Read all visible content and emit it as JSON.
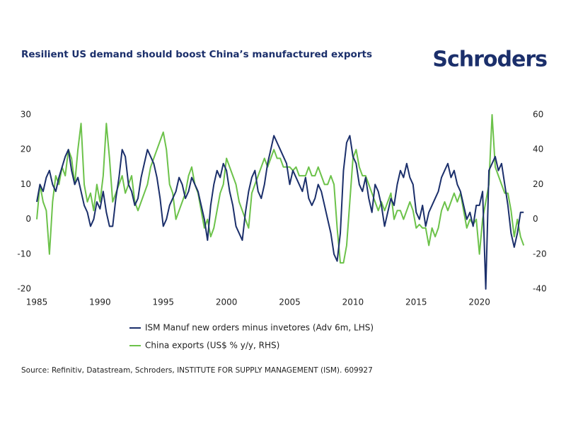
{
  "brand": "Schroders",
  "chart_data": {
    "type": "line",
    "title": "Resilient US demand should boost China’s manufactured exports",
    "source": "Source: Refinitiv, Datastream, Schroders, INSTITUTE FOR SUPPLY MANAGEMENT (ISM). 609927",
    "xlim": [
      1985,
      2023.6
    ],
    "xticks": [
      1985,
      1990,
      1995,
      2000,
      2005,
      2010,
      2015,
      2020
    ],
    "ylim": [
      -20,
      30
    ],
    "yticks": [
      -20,
      -10,
      0,
      10,
      20,
      30
    ],
    "y2lim": [
      -40,
      60
    ],
    "y2ticks": [
      -40,
      -20,
      0,
      20,
      40,
      60
    ],
    "x": [
      1985,
      1985.25,
      1985.5,
      1985.75,
      1986,
      1986.25,
      1986.5,
      1986.75,
      1987,
      1987.25,
      1987.5,
      1987.75,
      1988,
      1988.25,
      1988.5,
      1988.75,
      1989,
      1989.25,
      1989.5,
      1989.75,
      1990,
      1990.25,
      1990.5,
      1990.75,
      1991,
      1991.25,
      1991.5,
      1991.75,
      1992,
      1992.25,
      1992.5,
      1992.75,
      1993,
      1993.25,
      1993.5,
      1993.75,
      1994,
      1994.25,
      1994.5,
      1994.75,
      1995,
      1995.25,
      1995.5,
      1995.75,
      1996,
      1996.25,
      1996.5,
      1996.75,
      1997,
      1997.25,
      1997.5,
      1997.75,
      1998,
      1998.25,
      1998.5,
      1998.75,
      1999,
      1999.25,
      1999.5,
      1999.75,
      2000,
      2000.25,
      2000.5,
      2000.75,
      2001,
      2001.25,
      2001.5,
      2001.75,
      2002,
      2002.25,
      2002.5,
      2002.75,
      2003,
      2003.25,
      2003.5,
      2003.75,
      2004,
      2004.25,
      2004.5,
      2004.75,
      2005,
      2005.25,
      2005.5,
      2005.75,
      2006,
      2006.25,
      2006.5,
      2006.75,
      2007,
      2007.25,
      2007.5,
      2007.75,
      2008,
      2008.25,
      2008.5,
      2008.75,
      2009,
      2009.25,
      2009.5,
      2009.75,
      2010,
      2010.25,
      2010.5,
      2010.75,
      2011,
      2011.25,
      2011.5,
      2011.75,
      2012,
      2012.25,
      2012.5,
      2012.75,
      2013,
      2013.25,
      2013.5,
      2013.75,
      2014,
      2014.25,
      2014.5,
      2014.75,
      2015,
      2015.25,
      2015.5,
      2015.75,
      2016,
      2016.25,
      2016.5,
      2016.75,
      2017,
      2017.25,
      2017.5,
      2017.75,
      2018,
      2018.25,
      2018.5,
      2018.75,
      2019,
      2019.25,
      2019.5,
      2019.75,
      2020,
      2020.25,
      2020.5,
      2020.75,
      2021,
      2021.25,
      2021.5,
      2021.75,
      2022,
      2022.25,
      2022.5,
      2022.75,
      2023,
      2023.25,
      2023.5
    ],
    "series": [
      {
        "name": "ISM Manuf new orders minus invetores (Adv 6m, LHS)",
        "color": "#1b2f6b",
        "values": [
          5,
          10,
          8,
          12,
          14,
          10,
          8,
          12,
          15,
          18,
          20,
          14,
          10,
          12,
          8,
          4,
          2,
          -2,
          0,
          5,
          3,
          8,
          2,
          -2,
          -2,
          6,
          12,
          20,
          18,
          10,
          8,
          4,
          6,
          12,
          16,
          20,
          18,
          16,
          12,
          6,
          -2,
          0,
          4,
          6,
          8,
          12,
          10,
          6,
          8,
          12,
          10,
          8,
          4,
          0,
          -6,
          4,
          10,
          14,
          12,
          16,
          14,
          8,
          4,
          -2,
          -4,
          -6,
          2,
          8,
          12,
          14,
          8,
          6,
          10,
          16,
          20,
          24,
          22,
          20,
          18,
          16,
          10,
          14,
          12,
          10,
          8,
          12,
          6,
          4,
          6,
          10,
          8,
          4,
          0,
          -4,
          -10,
          -12,
          -4,
          14,
          22,
          24,
          18,
          16,
          10,
          8,
          12,
          6,
          2,
          10,
          8,
          4,
          -2,
          2,
          6,
          4,
          10,
          14,
          12,
          16,
          12,
          10,
          2,
          0,
          4,
          -2,
          2,
          4,
          6,
          8,
          12,
          14,
          16,
          12,
          14,
          10,
          8,
          4,
          0,
          2,
          -2,
          4,
          4,
          8,
          -20,
          14,
          16,
          18,
          14,
          16,
          10,
          4,
          -4,
          -8,
          -4,
          2,
          2
        ]
      },
      {
        "name": "China exports (US$ % y/y, RHS)",
        "color": "#6cc24a",
        "axis": "y2",
        "values": [
          0,
          20,
          10,
          5,
          -20,
          10,
          25,
          20,
          30,
          25,
          40,
          35,
          20,
          40,
          55,
          20,
          10,
          15,
          5,
          20,
          10,
          25,
          55,
          35,
          10,
          15,
          20,
          25,
          15,
          20,
          25,
          10,
          5,
          10,
          15,
          20,
          30,
          35,
          40,
          45,
          50,
          40,
          20,
          15,
          0,
          5,
          10,
          15,
          25,
          30,
          20,
          15,
          5,
          -5,
          0,
          -10,
          -5,
          5,
          15,
          20,
          35,
          30,
          25,
          20,
          10,
          5,
          0,
          -5,
          15,
          20,
          25,
          30,
          35,
          30,
          35,
          40,
          35,
          35,
          30,
          30,
          30,
          28,
          30,
          25,
          25,
          25,
          30,
          25,
          25,
          30,
          25,
          20,
          20,
          25,
          20,
          -5,
          -25,
          -25,
          -15,
          10,
          35,
          40,
          30,
          25,
          25,
          20,
          15,
          10,
          5,
          10,
          5,
          10,
          15,
          0,
          5,
          5,
          0,
          5,
          10,
          5,
          -5,
          -3,
          -5,
          -5,
          -15,
          -5,
          -10,
          -5,
          5,
          10,
          5,
          10,
          15,
          10,
          15,
          5,
          -5,
          0,
          -3,
          0,
          -20,
          0,
          10,
          20,
          60,
          30,
          25,
          20,
          15,
          15,
          5,
          -10,
          0,
          -10,
          -15
        ]
      }
    ]
  }
}
